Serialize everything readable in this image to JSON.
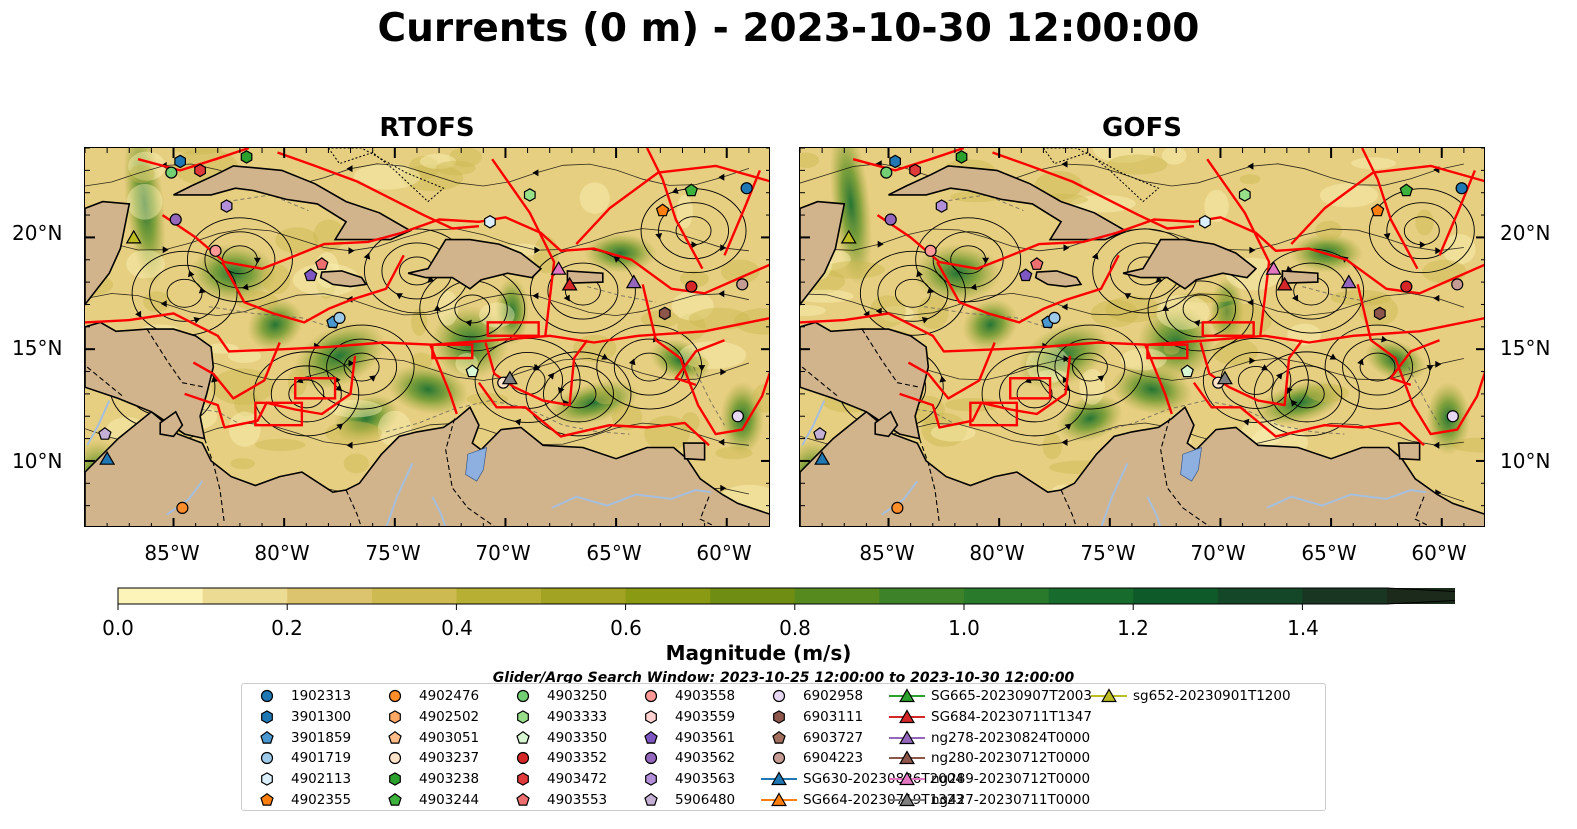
{
  "title": "Currents (0 m) - 2023-10-30 12:00:00",
  "panels": [
    {
      "title": "RTOFS"
    },
    {
      "title": "GOFS"
    }
  ],
  "lat_labels": [
    "20°N",
    "15°N",
    "10°N"
  ],
  "lon_labels": [
    "85°W",
    "80°W",
    "75°W",
    "70°W",
    "65°W",
    "60°W"
  ],
  "colorbar": {
    "label": "Magnitude (m/s)",
    "ticks": [
      "0.0",
      "0.2",
      "0.4",
      "0.6",
      "0.8",
      "1.0",
      "1.2",
      "1.4"
    ],
    "colors": [
      "#fcf4b8",
      "#ecdb93",
      "#dcc46e",
      "#cdbb51",
      "#b7ae34",
      "#a2a322",
      "#8a9a13",
      "#6e8d12",
      "#568a1e",
      "#3d8228",
      "#2a7a2c",
      "#166b2d",
      "#0f5a29",
      "#134727",
      "#183622",
      "#1b2a1a"
    ],
    "range": [
      0,
      1.6
    ],
    "extend": "max"
  },
  "search_window": "Glider/Argo Search Window: 2023-10-25 12:00:00 to 2023-10-30 12:00:00",
  "map_extent": {
    "lon": [
      -89,
      -58
    ],
    "lat": [
      7,
      24
    ]
  },
  "map_colors": {
    "land": "#d2b48c",
    "eez": "#ff0000",
    "river": "#a5bfdd",
    "lake": "#8db0e0"
  },
  "legend": [
    {
      "label": "1902313",
      "marker": "circle",
      "color": "#1f77b4"
    },
    {
      "label": "3901300",
      "marker": "hexagon",
      "color": "#1f77b4"
    },
    {
      "label": "3901859",
      "marker": "pentagon",
      "color": "#4a98cf"
    },
    {
      "label": "4901719",
      "marker": "circle",
      "color": "#9ecae9"
    },
    {
      "label": "4902113",
      "marker": "hexagon",
      "color": "#dbeefb"
    },
    {
      "label": "4902355",
      "marker": "pentagon",
      "color": "#ff7f0e"
    },
    {
      "label": "4902476",
      "marker": "circle",
      "color": "#ff8d2a"
    },
    {
      "label": "4902502",
      "marker": "hexagon",
      "color": "#ffa765"
    },
    {
      "label": "4903051",
      "marker": "pentagon",
      "color": "#ffbb88"
    },
    {
      "label": "4903237",
      "marker": "circle",
      "color": "#ffe3c9"
    },
    {
      "label": "4903238",
      "marker": "hexagon",
      "color": "#2ca02c"
    },
    {
      "label": "4903244",
      "marker": "pentagon",
      "color": "#3cb23c"
    },
    {
      "label": "4903250",
      "marker": "circle",
      "color": "#72cf72"
    },
    {
      "label": "4903333",
      "marker": "hexagon",
      "color": "#98df8a"
    },
    {
      "label": "4903350",
      "marker": "pentagon",
      "color": "#d9f7d2"
    },
    {
      "label": "4903352",
      "marker": "circle",
      "color": "#d62728"
    },
    {
      "label": "4903472",
      "marker": "hexagon",
      "color": "#e03a3b"
    },
    {
      "label": "4903553",
      "marker": "pentagon",
      "color": "#ee6f6f"
    },
    {
      "label": "4903558",
      "marker": "circle",
      "color": "#ff9896"
    },
    {
      "label": "4903559",
      "marker": "hexagon",
      "color": "#ffd2d1"
    },
    {
      "label": "4903561",
      "marker": "pentagon",
      "color": "#7e57c2"
    },
    {
      "label": "4903562",
      "marker": "circle",
      "color": "#9467bd"
    },
    {
      "label": "4903563",
      "marker": "hexagon",
      "color": "#b38fd9"
    },
    {
      "label": "5906480",
      "marker": "pentagon",
      "color": "#c5b0d5"
    },
    {
      "label": "6902958",
      "marker": "circle",
      "color": "#e6d7f3"
    },
    {
      "label": "6903111",
      "marker": "hexagon",
      "color": "#8c564b"
    },
    {
      "label": "6903727",
      "marker": "pentagon",
      "color": "#a46e5e"
    },
    {
      "label": "6904223",
      "marker": "circle",
      "color": "#c49c94"
    },
    {
      "label": "SG630-20230826T2004",
      "marker": "triangle-line",
      "color": "#1f77b4"
    },
    {
      "label": "SG664-20230719T1323",
      "marker": "triangle-line",
      "color": "#ff7f0e"
    },
    {
      "label": "SG665-20230907T2003",
      "marker": "triangle-line",
      "color": "#2ca02c"
    },
    {
      "label": "SG684-20230711T1347",
      "marker": "triangle-line",
      "color": "#d62728"
    },
    {
      "label": "ng278-20230824T0000",
      "marker": "triangle-line",
      "color": "#9467bd"
    },
    {
      "label": "ng280-20230712T0000",
      "marker": "triangle-line",
      "color": "#8c564b"
    },
    {
      "label": "ng289-20230712T0000",
      "marker": "triangle-line",
      "color": "#e377c2"
    },
    {
      "label": "ng427-20230711T0000",
      "marker": "triangle-line",
      "color": "#7f7f7f"
    },
    {
      "label": "sg652-20230901T1200",
      "marker": "triangle-line",
      "color": "#bcbd22"
    }
  ],
  "platforms": [
    {
      "id": "1902313",
      "lon": -59.1,
      "lat": 22.2
    },
    {
      "id": "3901300",
      "lon": -84.7,
      "lat": 23.4
    },
    {
      "id": "3901859",
      "lon": -77.8,
      "lat": 16.2
    },
    {
      "id": "4901719",
      "lon": -77.5,
      "lat": 16.4
    },
    {
      "id": "4902113",
      "lon": -70.7,
      "lat": 20.7
    },
    {
      "id": "4902355",
      "lon": -62.9,
      "lat": 21.2
    },
    {
      "id": "4902476",
      "lon": -84.6,
      "lat": 7.9
    },
    {
      "id": "4903237",
      "lon": -70.1,
      "lat": 13.5
    },
    {
      "id": "4903238",
      "lon": -81.7,
      "lat": 23.6
    },
    {
      "id": "4903244",
      "lon": -61.6,
      "lat": 22.1
    },
    {
      "id": "4903250",
      "lon": -85.1,
      "lat": 22.9
    },
    {
      "id": "4903333",
      "lon": -68.9,
      "lat": 21.9
    },
    {
      "id": "4903350",
      "lon": -71.5,
      "lat": 14.0
    },
    {
      "id": "4903352",
      "lon": -61.6,
      "lat": 17.8
    },
    {
      "id": "4903472",
      "lon": -83.8,
      "lat": 23.0
    },
    {
      "id": "4903553",
      "lon": -78.3,
      "lat": 18.8
    },
    {
      "id": "4903558",
      "lon": -83.1,
      "lat": 19.4
    },
    {
      "id": "4903561",
      "lon": -78.8,
      "lat": 18.3
    },
    {
      "id": "4903562",
      "lon": -84.9,
      "lat": 20.8
    },
    {
      "id": "4903563",
      "lon": -82.6,
      "lat": 21.4
    },
    {
      "id": "5906480",
      "lon": -88.1,
      "lat": 11.2
    },
    {
      "id": "6902958",
      "lon": -59.5,
      "lat": 12.0
    },
    {
      "id": "6903111",
      "lon": -62.8,
      "lat": 16.6
    },
    {
      "id": "6904223",
      "lon": -59.3,
      "lat": 17.9
    },
    {
      "id": "SG630-20230826T2004",
      "lon": -88.0,
      "lat": 10.1
    },
    {
      "id": "SG684-20230711T1347",
      "lon": -67.1,
      "lat": 17.9
    },
    {
      "id": "ng278-20230824T0000",
      "lon": -64.2,
      "lat": 18.0
    },
    {
      "id": "ng289-20230712T0000",
      "lon": -67.6,
      "lat": 18.6
    },
    {
      "id": "ng427-20230711T0000",
      "lon": -69.8,
      "lat": 13.7
    },
    {
      "id": "sg652-20230901T1200",
      "lon": -86.8,
      "lat": 20.0
    }
  ]
}
